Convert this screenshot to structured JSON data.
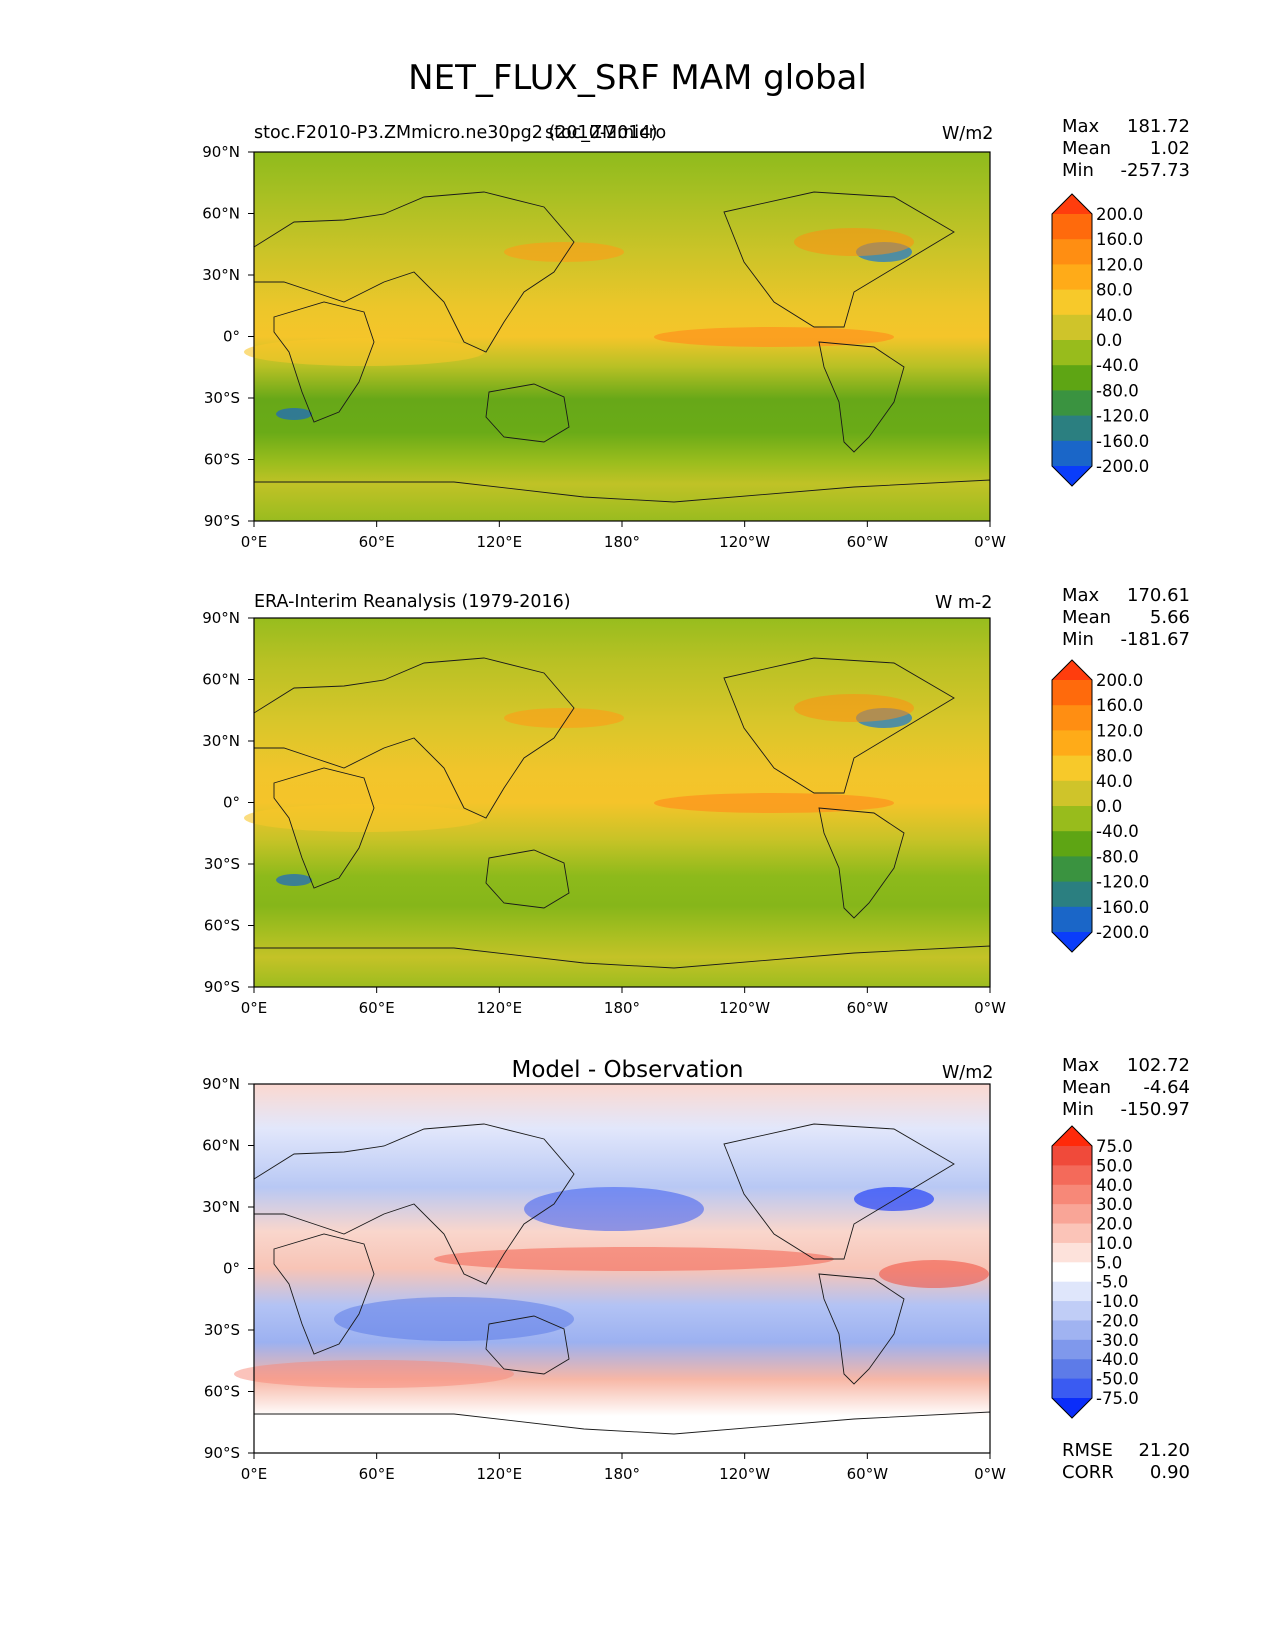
{
  "figure_title": "NET_FLUX_SRF MAM global",
  "x_tick_labels": [
    "0°E",
    "60°E",
    "120°E",
    "180°",
    "120°W",
    "60°W",
    "0°W"
  ],
  "y_tick_labels": [
    "90°N",
    "60°N",
    "30°N",
    "0°",
    "30°S",
    "60°S",
    "90°S"
  ],
  "panels": [
    {
      "title_left": "stoc.F2010-P3.ZMmicro.ne30pg2 (2010-2014)",
      "title_center": "stoc_ZMmicro",
      "units": "W/m2",
      "stats": {
        "max_label": "Max",
        "max": "181.72",
        "mean_label": "Mean",
        "mean": "1.02",
        "min_label": "Min",
        "min": "-257.73"
      },
      "colorbar": {
        "labels": [
          "200.0",
          "160.0",
          "120.0",
          "80.0",
          "40.0",
          "0.0",
          "-40.0",
          "-80.0",
          "-120.0",
          "-160.0",
          "-200.0"
        ],
        "colors": [
          "#ff3d0d",
          "#ff6a0c",
          "#ff8e12",
          "#ffab18",
          "#f7c92a",
          "#cfc42a",
          "#98bc1c",
          "#5ea514",
          "#3a9340",
          "#2b7f80",
          "#1a66c8",
          "#0a3dfa"
        ]
      }
    },
    {
      "title_left": "ERA-Interim Reanalysis (1979-2016)",
      "title_center": "",
      "units": "W m-2",
      "stats": {
        "max_label": "Max",
        "max": "170.61",
        "mean_label": "Mean",
        "mean": "5.66",
        "min_label": "Min",
        "min": "-181.67"
      },
      "colorbar": {
        "labels": [
          "200.0",
          "160.0",
          "120.0",
          "80.0",
          "40.0",
          "0.0",
          "-40.0",
          "-80.0",
          "-120.0",
          "-160.0",
          "-200.0"
        ],
        "colors": [
          "#ff3d0d",
          "#ff6a0c",
          "#ff8e12",
          "#ffab18",
          "#f7c92a",
          "#cfc42a",
          "#98bc1c",
          "#5ea514",
          "#3a9340",
          "#2b7f80",
          "#1a66c8",
          "#0a3dfa"
        ]
      }
    },
    {
      "title_left": "",
      "title_center": "Model - Observation",
      "units": "W/m2",
      "stats": {
        "max_label": "Max",
        "max": "102.72",
        "mean_label": "Mean",
        "mean": "-4.64",
        "min_label": "Min",
        "min": "-150.97"
      },
      "colorbar": {
        "labels": [
          "75.0",
          "50.0",
          "40.0",
          "30.0",
          "20.0",
          "10.0",
          "5.0",
          "-5.0",
          "-10.0",
          "-20.0",
          "-30.0",
          "-40.0",
          "-50.0",
          "-75.0"
        ],
        "colors": [
          "#ff2a0a",
          "#f04a3a",
          "#f46a5a",
          "#f78878",
          "#f9a597",
          "#fbc4b8",
          "#fde2db",
          "#ffffff",
          "#dfe6fb",
          "#c0cdf6",
          "#a0b3f1",
          "#7f98ec",
          "#5d7be8",
          "#3a5bf2",
          "#0a2dfa"
        ]
      },
      "footer": {
        "rmse_label": "RMSE",
        "rmse": "21.20",
        "corr_label": "CORR",
        "corr": "0.90"
      }
    }
  ]
}
